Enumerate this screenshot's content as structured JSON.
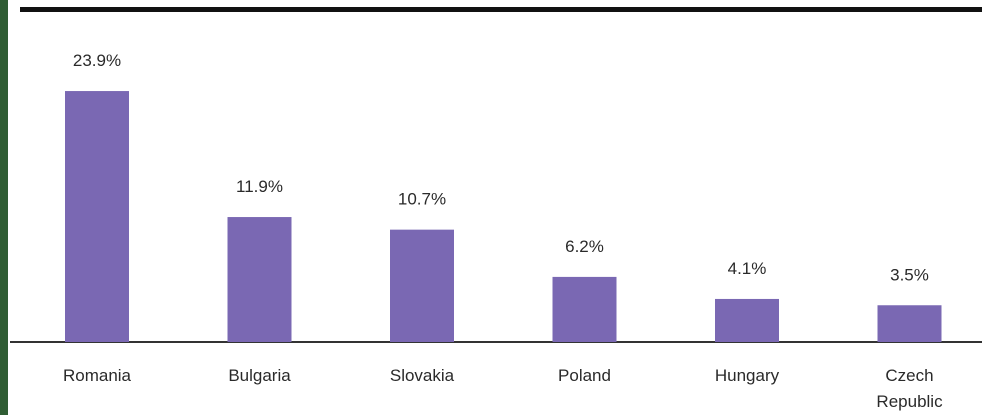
{
  "chart_data": {
    "type": "bar",
    "categories": [
      "Romania",
      "Bulgaria",
      "Slovakia",
      "Poland",
      "Hungary",
      "Czech Republic"
    ],
    "category_lines": [
      [
        "Romania"
      ],
      [
        "Bulgaria"
      ],
      [
        "Slovakia"
      ],
      [
        "Poland"
      ],
      [
        "Hungary"
      ],
      [
        "Czech",
        "Republic"
      ]
    ],
    "values": [
      23.9,
      11.9,
      10.7,
      6.2,
      4.1,
      3.5
    ],
    "value_labels": [
      "23.9%",
      "11.9%",
      "10.7%",
      "6.2%",
      "4.1%",
      "3.5%"
    ],
    "unit": "%",
    "ylim": [
      0,
      26
    ],
    "grid": false,
    "legend": "none",
    "bar_color": "#7a68b3",
    "axis_color": "#333333"
  }
}
